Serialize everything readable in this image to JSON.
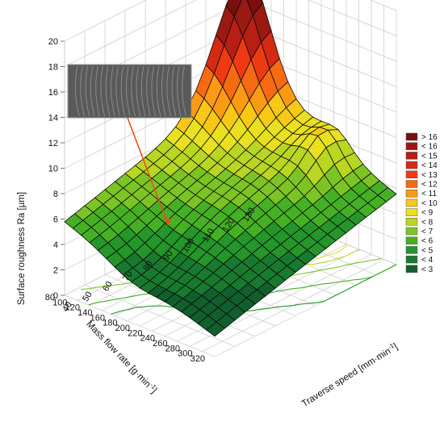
{
  "chart_data": {
    "type": "surface3d",
    "zlabel": "Surface roughness Ra  [µm]",
    "xlabel_main": "Traverse speed  [mm·min",
    "xlabel_sup": "-1",
    "xlabel_end": "]",
    "ylabel_main": "Mass flow rate  [g·min",
    "ylabel_sup": "-1",
    "ylabel_end": "]",
    "x_ticks": [
      "40",
      "50",
      "60",
      "70",
      "80",
      "90",
      "100",
      "110",
      "120",
      "130"
    ],
    "y_ticks": [
      "80",
      "100",
      "120",
      "140",
      "160",
      "180",
      "200",
      "220",
      "240",
      "260",
      "280",
      "300",
      "320"
    ],
    "z_ticks": [
      "0",
      "2",
      "4",
      "6",
      "8",
      "10",
      "12",
      "14",
      "16",
      "18",
      "20"
    ],
    "xlim": [
      40,
      130
    ],
    "ylim": [
      80,
      320
    ],
    "zlim": [
      0,
      20
    ],
    "legend": [
      {
        "label": "> 16",
        "color": "#7b0e0e"
      },
      {
        "label": "< 16",
        "color": "#9a1a12"
      },
      {
        "label": "< 15",
        "color": "#b71f14"
      },
      {
        "label": "< 14",
        "color": "#d42a14"
      },
      {
        "label": "< 13",
        "color": "#ee3a12"
      },
      {
        "label": "< 12",
        "color": "#f66a12"
      },
      {
        "label": "< 11",
        "color": "#fb9a14"
      },
      {
        "label": "< 10",
        "color": "#f8c816"
      },
      {
        "label": "< 9",
        "color": "#e8e020"
      },
      {
        "label": "< 8",
        "color": "#b8d622"
      },
      {
        "label": "< 7",
        "color": "#7cc424"
      },
      {
        "label": "< 6",
        "color": "#46b024"
      },
      {
        "label": "< 5",
        "color": "#24962a"
      },
      {
        "label": "< 4",
        "color": "#187a2e"
      },
      {
        "label": "< 3",
        "color": "#115f2c"
      }
    ]
  }
}
